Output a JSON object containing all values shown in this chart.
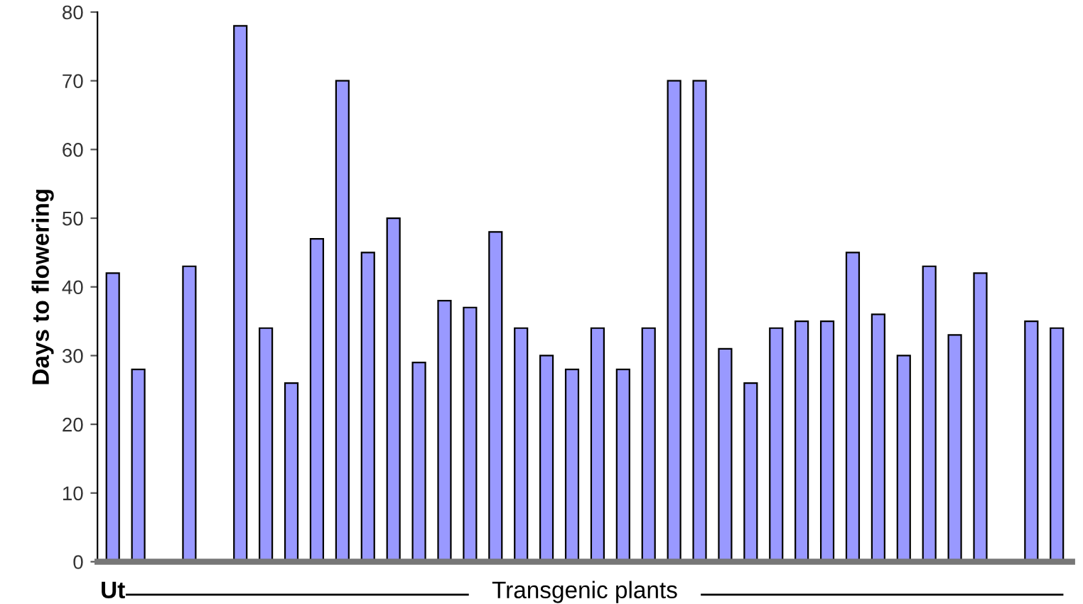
{
  "chart_data": {
    "type": "bar",
    "ylabel": "Days to flowering",
    "xlabel": "Transgenic plants",
    "categories": [
      "Ut",
      null,
      null,
      null,
      null,
      null,
      null,
      null,
      null,
      null,
      null,
      null,
      null,
      null,
      null,
      null,
      null,
      null,
      null,
      null,
      null,
      null,
      null,
      null,
      null,
      null,
      null,
      null,
      null,
      null,
      null,
      null,
      null,
      null,
      null,
      null,
      null,
      null
    ],
    "values": [
      42,
      28,
      0,
      43,
      0,
      78,
      34,
      26,
      47,
      70,
      45,
      50,
      29,
      38,
      37,
      48,
      34,
      30,
      28,
      34,
      28,
      34,
      70,
      70,
      31,
      26,
      34,
      35,
      35,
      45,
      36,
      30,
      43,
      33,
      42,
      0,
      35,
      34
    ],
    "color": "#9999ff",
    "ylim": [
      0,
      80
    ],
    "yticks": [
      0,
      10,
      20,
      30,
      40,
      50,
      60,
      70,
      80
    ],
    "grid": false
  }
}
